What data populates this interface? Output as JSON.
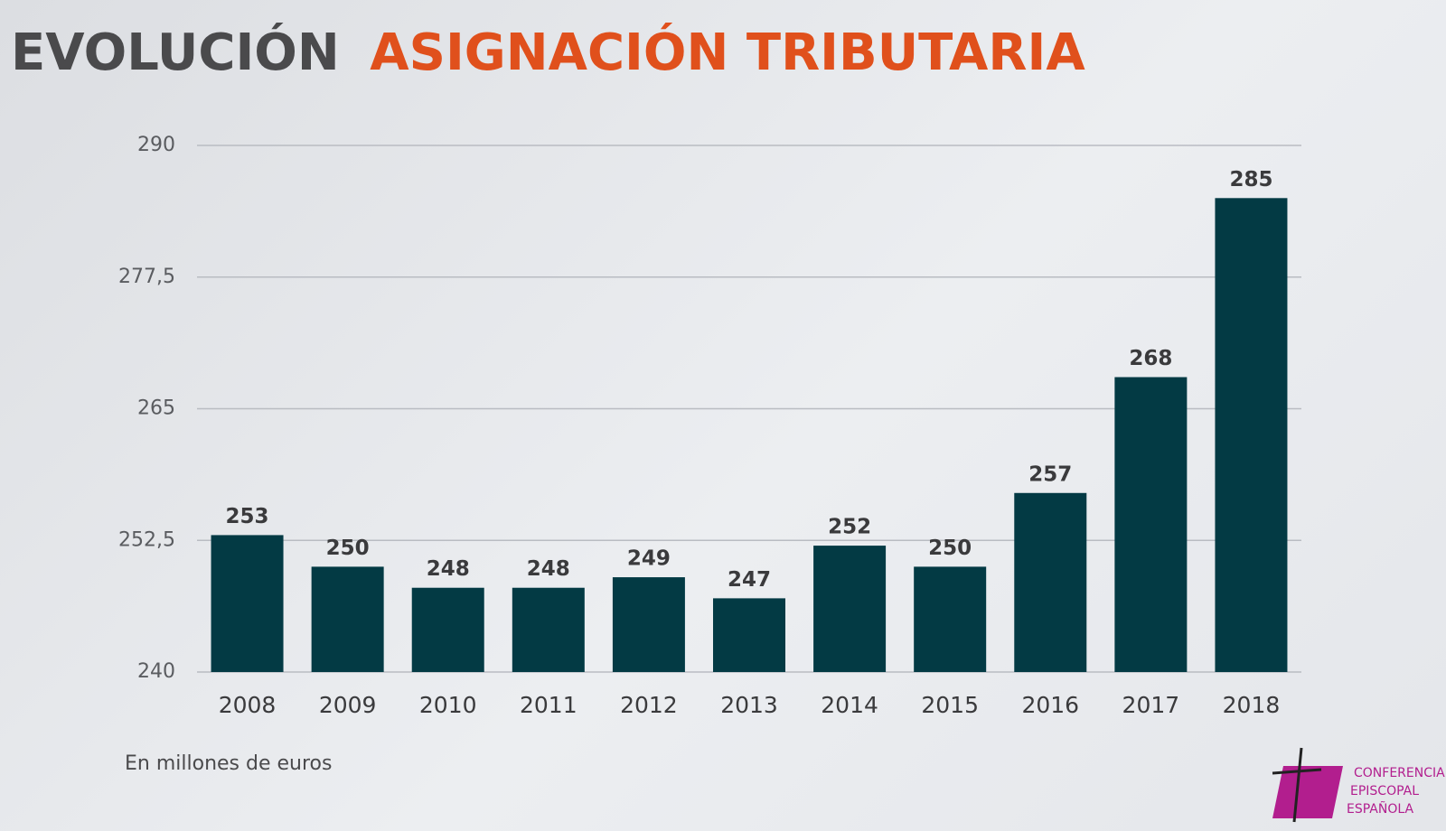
{
  "chart_data": {
    "type": "bar",
    "title_parts": [
      "EVOLUCIÓN",
      "ASIGNACIÓN TRIBUTARIA"
    ],
    "title_colors": [
      "#4a4a4c",
      "#e0501c"
    ],
    "note": "En millones de euros",
    "categories": [
      "2008",
      "2009",
      "2010",
      "2011",
      "2012",
      "2013",
      "2014",
      "2015",
      "2016",
      "2017",
      "2018"
    ],
    "values": [
      253,
      250,
      248,
      248,
      249,
      247,
      252,
      250,
      257,
      268,
      285
    ],
    "color": "#033a44",
    "ylim": [
      240,
      290
    ],
    "yticks": [
      240,
      {
        "value": 252.5,
        "label": "252,5"
      },
      265,
      {
        "value": 277.5,
        "label": "277,5"
      },
      290
    ],
    "grid": true
  },
  "logo": {
    "lines": [
      "CONFERENCIA",
      "EPISCOPAL",
      "ESPAÑOLA"
    ]
  }
}
